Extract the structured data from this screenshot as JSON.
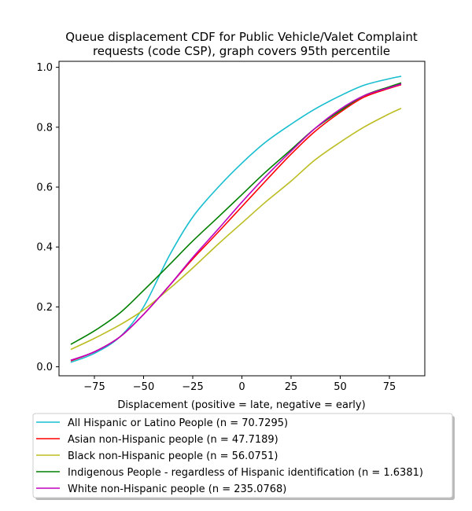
{
  "chart_data": {
    "type": "line",
    "title_lines": [
      "Queue displacement CDF for Public Vehicle/Valet Complaint",
      "requests (code CSP), graph covers 95th percentile"
    ],
    "xlabel": "Displacement (positive = late, negative = early)",
    "ylabel": "",
    "xlim": [
      -93,
      93
    ],
    "ylim": [
      -0.03,
      1.02
    ],
    "xticks": [
      -75,
      -50,
      -25,
      0,
      25,
      50,
      75
    ],
    "xtick_labels": [
      "−75",
      "−50",
      "−25",
      "0",
      "25",
      "50",
      "75"
    ],
    "yticks": [
      0.0,
      0.2,
      0.4,
      0.6,
      0.8,
      1.0
    ],
    "ytick_labels": [
      "0.0",
      "0.2",
      "0.4",
      "0.6",
      "0.8",
      "1.0"
    ],
    "grid": false,
    "legend_position": "below",
    "series": [
      {
        "name": "All Hispanic or Latino People (n = 70.7295)",
        "color": "#17becf",
        "x": [
          -87,
          -75,
          -62,
          -50,
          -37,
          -25,
          -12,
          0,
          12,
          25,
          37,
          50,
          62,
          75,
          81
        ],
        "y": [
          0.015,
          0.045,
          0.1,
          0.2,
          0.37,
          0.5,
          0.6,
          0.68,
          0.75,
          0.81,
          0.86,
          0.905,
          0.94,
          0.962,
          0.97
        ]
      },
      {
        "name": "Asian non-Hispanic people (n = 47.7189)",
        "color": "#ff0000",
        "x": [
          -87,
          -75,
          -62,
          -50,
          -37,
          -25,
          -12,
          0,
          12,
          25,
          37,
          50,
          62,
          75,
          81
        ],
        "y": [
          0.02,
          0.05,
          0.1,
          0.175,
          0.27,
          0.36,
          0.45,
          0.535,
          0.62,
          0.71,
          0.785,
          0.85,
          0.9,
          0.93,
          0.942
        ]
      },
      {
        "name": "Black non-Hispanic people (n = 56.0751)",
        "color": "#bcbd22",
        "x": [
          -87,
          -75,
          -62,
          -50,
          -37,
          -25,
          -12,
          0,
          12,
          25,
          37,
          50,
          62,
          75,
          81
        ],
        "y": [
          0.058,
          0.095,
          0.14,
          0.19,
          0.26,
          0.33,
          0.41,
          0.48,
          0.55,
          0.62,
          0.69,
          0.75,
          0.8,
          0.845,
          0.863
        ]
      },
      {
        "name": "Indigenous People - regardless of Hispanic identification (n = 1.6381)",
        "color": "#008000",
        "x": [
          -87,
          -75,
          -62,
          -50,
          -37,
          -25,
          -12,
          0,
          12,
          25,
          37,
          50,
          62,
          75,
          81
        ],
        "y": [
          0.075,
          0.12,
          0.18,
          0.255,
          0.34,
          0.42,
          0.5,
          0.575,
          0.65,
          0.725,
          0.795,
          0.855,
          0.905,
          0.935,
          0.948
        ]
      },
      {
        "name": "White non-Hispanic people (n = 235.0768)",
        "color": "#bf00bf",
        "x": [
          -87,
          -75,
          -62,
          -50,
          -37,
          -25,
          -12,
          0,
          12,
          25,
          37,
          50,
          62,
          75,
          81
        ],
        "y": [
          0.022,
          0.05,
          0.1,
          0.175,
          0.27,
          0.365,
          0.46,
          0.55,
          0.635,
          0.72,
          0.795,
          0.86,
          0.905,
          0.932,
          0.944
        ]
      }
    ]
  }
}
